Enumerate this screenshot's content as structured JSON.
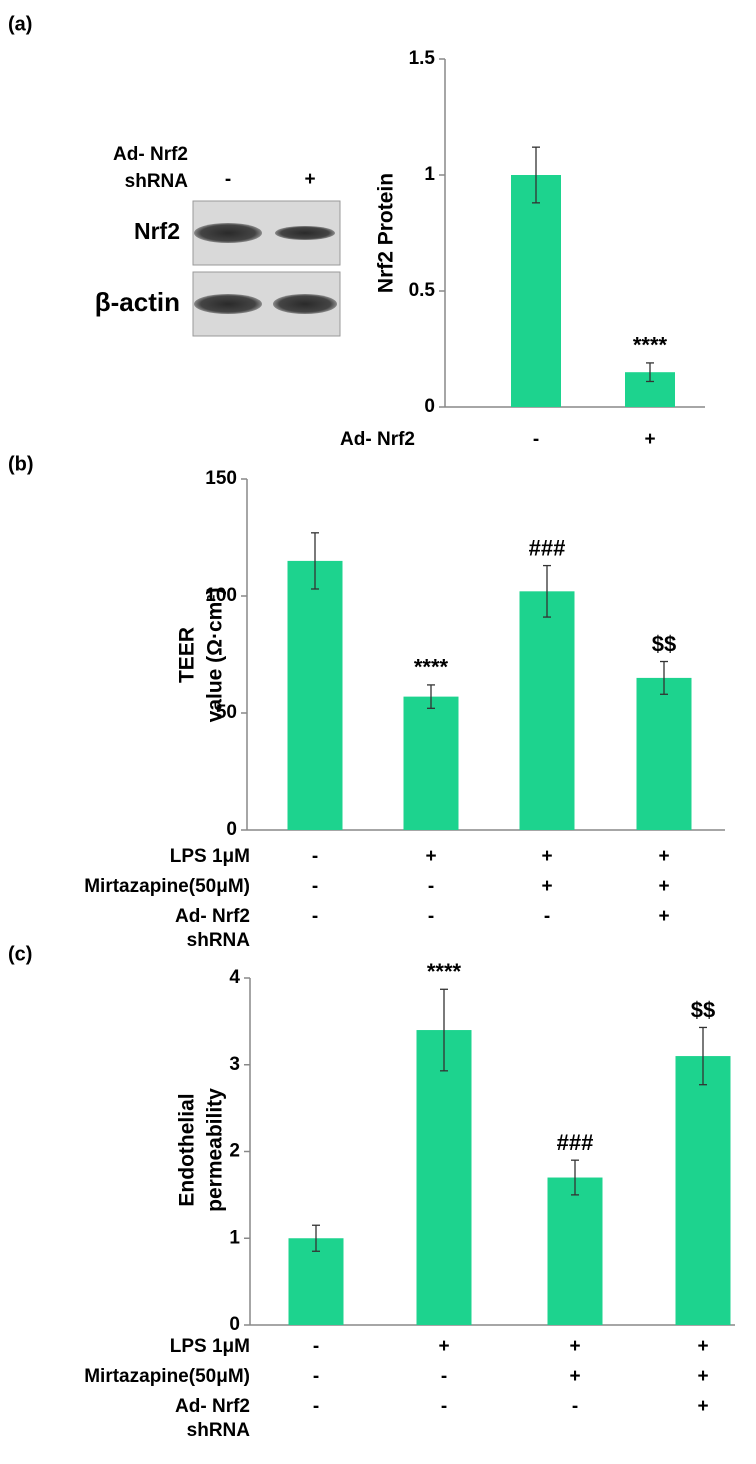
{
  "blot": {
    "header": [
      "Ad- Nrf2",
      "shRNA"
    ],
    "lanes": [
      "-",
      "+"
    ],
    "rows": [
      "Nrf2",
      "β-actin"
    ]
  },
  "chart_data": [
    {
      "type": "bar",
      "panel_label": "(a)",
      "ylabel": [
        "Nrf2 Protein"
      ],
      "color": "#1dd38e",
      "conditions": [
        {
          "name": [
            "Ad- Nrf2"
          ],
          "signs": [
            "-",
            "+"
          ]
        }
      ],
      "values": [
        1,
        0.15
      ],
      "errors": [
        0.12,
        0.04
      ],
      "annotations": [
        {
          "index": 1,
          "text": "****"
        }
      ],
      "ylim": [
        0,
        1.5
      ],
      "yticks": [
        0,
        0.5,
        1,
        1.5
      ]
    },
    {
      "type": "bar",
      "panel_label": "(b)",
      "ylabel": [
        "TEER",
        "value (Ω·cm²)"
      ],
      "color": "#1dd38e",
      "conditions": [
        {
          "name": [
            "LPS 1μM"
          ],
          "signs": [
            "-",
            "+",
            "+",
            "+"
          ]
        },
        {
          "name": [
            "Mirtazapine(50μM)"
          ],
          "signs": [
            "-",
            "-",
            "+",
            "+"
          ]
        },
        {
          "name": [
            "Ad- Nrf2",
            "shRNA"
          ],
          "signs": [
            "-",
            "-",
            "-",
            "+"
          ]
        }
      ],
      "values": [
        115,
        57,
        102,
        65
      ],
      "errors": [
        12,
        5,
        11,
        7
      ],
      "annotations": [
        {
          "index": 1,
          "text": "****"
        },
        {
          "index": 2,
          "text": "###"
        },
        {
          "index": 3,
          "text": "$$"
        }
      ],
      "ylim": [
        0,
        150
      ],
      "yticks": [
        0,
        50,
        100,
        150
      ]
    },
    {
      "type": "bar",
      "panel_label": "(c)",
      "ylabel": [
        "Endothelial",
        "permeability"
      ],
      "color": "#1dd38e",
      "conditions": [
        {
          "name": [
            "LPS 1μM"
          ],
          "signs": [
            "-",
            "+",
            "+",
            "+"
          ]
        },
        {
          "name": [
            "Mirtazapine(50μM)"
          ],
          "signs": [
            "-",
            "-",
            "+",
            "+"
          ]
        },
        {
          "name": [
            "Ad- Nrf2",
            "shRNA"
          ],
          "signs": [
            "-",
            "-",
            "-",
            "+"
          ]
        }
      ],
      "values": [
        1,
        3.4,
        1.7,
        3.1
      ],
      "errors": [
        0.15,
        0.47,
        0.2,
        0.33
      ],
      "annotations": [
        {
          "index": 1,
          "text": "****"
        },
        {
          "index": 2,
          "text": "###"
        },
        {
          "index": 3,
          "text": "$$"
        }
      ],
      "ylim": [
        0,
        4
      ],
      "yticks": [
        0,
        1,
        2,
        3,
        4
      ]
    }
  ]
}
